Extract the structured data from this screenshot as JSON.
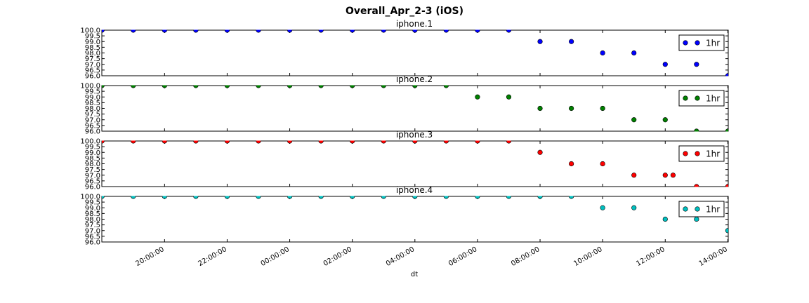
{
  "chart_data": {
    "type": "scatter",
    "title": "Overall_Apr_2-3 (iOS)",
    "xlabel": "dt",
    "x_ticks": [
      "20:00:00",
      "22:00:00",
      "00:00:00",
      "02:00:00",
      "04:00:00",
      "06:00:00",
      "08:00:00",
      "10:00:00",
      "12:00:00",
      "14:00:00"
    ],
    "ylim": [
      96.0,
      100.0
    ],
    "y_ticks": [
      "96.0",
      "96.5",
      "97.0",
      "97.5",
      "98.0",
      "98.5",
      "99.0",
      "99.5",
      "100.0"
    ],
    "legend_position": "top-right",
    "panels": [
      {
        "title": "iphone.1",
        "color": "#0000ff",
        "legend": "1hr",
        "points": [
          {
            "x": "18:00",
            "y": 100.0
          },
          {
            "x": "19:00",
            "y": 100.0
          },
          {
            "x": "20:00",
            "y": 100.0
          },
          {
            "x": "21:00",
            "y": 100.0
          },
          {
            "x": "22:00",
            "y": 100.0
          },
          {
            "x": "23:00",
            "y": 100.0
          },
          {
            "x": "00:00",
            "y": 100.0
          },
          {
            "x": "01:00",
            "y": 100.0
          },
          {
            "x": "02:00",
            "y": 100.0
          },
          {
            "x": "03:00",
            "y": 100.0
          },
          {
            "x": "04:00",
            "y": 100.0
          },
          {
            "x": "05:00",
            "y": 100.0
          },
          {
            "x": "06:00",
            "y": 100.0
          },
          {
            "x": "07:00",
            "y": 100.0
          },
          {
            "x": "08:00",
            "y": 99.0
          },
          {
            "x": "09:00",
            "y": 99.0
          },
          {
            "x": "10:00",
            "y": 98.0
          },
          {
            "x": "11:00",
            "y": 98.0
          },
          {
            "x": "12:00",
            "y": 97.0
          },
          {
            "x": "13:00",
            "y": 97.0
          },
          {
            "x": "14:00",
            "y": 96.0
          }
        ]
      },
      {
        "title": "iphone.2",
        "color": "#008000",
        "legend": "1hr",
        "points": [
          {
            "x": "18:00",
            "y": 100.0
          },
          {
            "x": "19:00",
            "y": 100.0
          },
          {
            "x": "20:00",
            "y": 100.0
          },
          {
            "x": "21:00",
            "y": 100.0
          },
          {
            "x": "22:00",
            "y": 100.0
          },
          {
            "x": "23:00",
            "y": 100.0
          },
          {
            "x": "00:00",
            "y": 100.0
          },
          {
            "x": "01:00",
            "y": 100.0
          },
          {
            "x": "02:00",
            "y": 100.0
          },
          {
            "x": "03:00",
            "y": 100.0
          },
          {
            "x": "04:00",
            "y": 100.0
          },
          {
            "x": "05:00",
            "y": 100.0
          },
          {
            "x": "06:00",
            "y": 99.0
          },
          {
            "x": "07:00",
            "y": 99.0
          },
          {
            "x": "08:00",
            "y": 98.0
          },
          {
            "x": "09:00",
            "y": 98.0
          },
          {
            "x": "10:00",
            "y": 98.0
          },
          {
            "x": "11:00",
            "y": 97.0
          },
          {
            "x": "12:00",
            "y": 97.0
          },
          {
            "x": "13:00",
            "y": 96.0
          },
          {
            "x": "14:00",
            "y": 96.0
          }
        ]
      },
      {
        "title": "iphone.3",
        "color": "#ff0000",
        "legend": "1hr",
        "points": [
          {
            "x": "18:00",
            "y": 100.0
          },
          {
            "x": "19:00",
            "y": 100.0
          },
          {
            "x": "20:00",
            "y": 100.0
          },
          {
            "x": "21:00",
            "y": 100.0
          },
          {
            "x": "22:00",
            "y": 100.0
          },
          {
            "x": "23:00",
            "y": 100.0
          },
          {
            "x": "00:00",
            "y": 100.0
          },
          {
            "x": "01:00",
            "y": 100.0
          },
          {
            "x": "02:00",
            "y": 100.0
          },
          {
            "x": "03:00",
            "y": 100.0
          },
          {
            "x": "04:00",
            "y": 100.0
          },
          {
            "x": "05:00",
            "y": 100.0
          },
          {
            "x": "06:00",
            "y": 100.0
          },
          {
            "x": "07:00",
            "y": 100.0
          },
          {
            "x": "08:00",
            "y": 99.0
          },
          {
            "x": "09:00",
            "y": 98.0
          },
          {
            "x": "10:00",
            "y": 98.0
          },
          {
            "x": "11:00",
            "y": 97.0
          },
          {
            "x": "12:00",
            "y": 97.0
          },
          {
            "x": "12:15",
            "y": 97.0
          },
          {
            "x": "13:00",
            "y": 96.0
          },
          {
            "x": "14:00",
            "y": 96.0
          }
        ]
      },
      {
        "title": "iphone.4",
        "color": "#00bfbf",
        "legend": "1hr",
        "points": [
          {
            "x": "18:00",
            "y": 100.0
          },
          {
            "x": "19:00",
            "y": 100.0
          },
          {
            "x": "20:00",
            "y": 100.0
          },
          {
            "x": "21:00",
            "y": 100.0
          },
          {
            "x": "22:00",
            "y": 100.0
          },
          {
            "x": "23:00",
            "y": 100.0
          },
          {
            "x": "00:00",
            "y": 100.0
          },
          {
            "x": "01:00",
            "y": 100.0
          },
          {
            "x": "02:00",
            "y": 100.0
          },
          {
            "x": "03:00",
            "y": 100.0
          },
          {
            "x": "04:00",
            "y": 100.0
          },
          {
            "x": "05:00",
            "y": 100.0
          },
          {
            "x": "06:00",
            "y": 100.0
          },
          {
            "x": "07:00",
            "y": 100.0
          },
          {
            "x": "08:00",
            "y": 100.0
          },
          {
            "x": "09:00",
            "y": 100.0
          },
          {
            "x": "10:00",
            "y": 99.0
          },
          {
            "x": "11:00",
            "y": 99.0
          },
          {
            "x": "12:00",
            "y": 98.0
          },
          {
            "x": "13:00",
            "y": 98.0
          },
          {
            "x": "14:00",
            "y": 97.0
          }
        ]
      }
    ]
  }
}
